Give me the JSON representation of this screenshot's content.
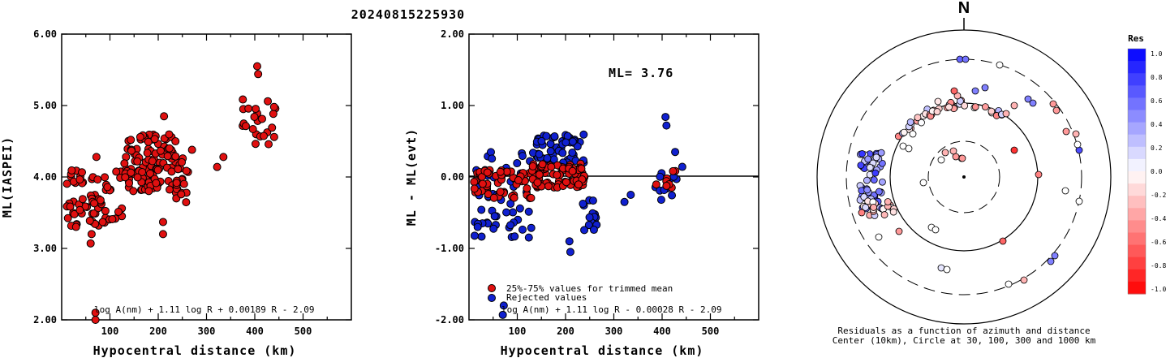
{
  "title": "20240815225930",
  "colors": {
    "red": "#e01010",
    "blue": "#1020d0",
    "black": "#000000"
  },
  "chart_data": [
    {
      "type": "scatter",
      "name": "left",
      "xlabel": "Hypocentral distance (km)",
      "ylabel": "ML(IASPEI)",
      "xlim": [
        0,
        600
      ],
      "ylim": [
        2.0,
        6.0
      ],
      "xticks": [
        "100",
        "200",
        "300",
        "400",
        "500"
      ],
      "yticks": [
        "2.00",
        "3.00",
        "4.00",
        "5.00",
        "6.00"
      ],
      "formula": "log A(nm) + 1.11 log R + 0.00189 R - 2.09",
      "clusters": [
        {
          "x": [
            10,
            130
          ],
          "y": [
            3.3,
            4.1
          ],
          "n": 70
        },
        {
          "x": [
            130,
            240
          ],
          "y": [
            3.8,
            4.6
          ],
          "n": 110
        },
        {
          "x": [
            235,
            265
          ],
          "y": [
            3.6,
            4.3
          ],
          "n": 22
        },
        {
          "x": [
            375,
            445
          ],
          "y": [
            4.4,
            5.1
          ],
          "n": 22
        }
      ],
      "points": [
        {
          "x": 60,
          "y": 3.07
        },
        {
          "x": 62,
          "y": 3.2
        },
        {
          "x": 70,
          "y": 2.1
        },
        {
          "x": 70,
          "y": 2.0
        },
        {
          "x": 72,
          "y": 4.28
        },
        {
          "x": 210,
          "y": 3.37
        },
        {
          "x": 210,
          "y": 3.2
        },
        {
          "x": 212,
          "y": 4.85
        },
        {
          "x": 322,
          "y": 4.14
        },
        {
          "x": 335,
          "y": 4.28
        },
        {
          "x": 405,
          "y": 5.55
        },
        {
          "x": 407,
          "y": 5.44
        },
        {
          "x": 427,
          "y": 5.06
        },
        {
          "x": 440,
          "y": 4.98
        },
        {
          "x": 270,
          "y": 4.38
        }
      ]
    },
    {
      "type": "scatter",
      "name": "middle",
      "xlabel": "Hypocentral distance (km)",
      "ylabel": "ML - ML(evt)",
      "xlim": [
        0,
        600
      ],
      "ylim": [
        -2.0,
        2.0
      ],
      "xticks": [
        "100",
        "200",
        "300",
        "400",
        "500"
      ],
      "yticks": [
        "-2.00",
        "-1.00",
        "0.00",
        "1.00",
        "2.00"
      ],
      "annotation": "ML= 3.76",
      "legend": [
        "25%-75% values for trimmed mean",
        "Rejected values"
      ],
      "formula": "log A(nm) + 1.11 log R - 0.00028 R - 2.09",
      "clusters_red": [
        {
          "x": [
            10,
            130
          ],
          "y": [
            -0.3,
            0.1
          ],
          "n": 55
        },
        {
          "x": [
            130,
            240
          ],
          "y": [
            -0.15,
            0.2
          ],
          "n": 85
        },
        {
          "x": [
            380,
            440
          ],
          "y": [
            -0.15,
            0.1
          ],
          "n": 8
        }
      ],
      "clusters_blue": [
        {
          "x": [
            10,
            130
          ],
          "y": [
            -0.85,
            0.35
          ],
          "n": 60
        },
        {
          "x": [
            130,
            240
          ],
          "y": [
            0.2,
            0.6
          ],
          "n": 55
        },
        {
          "x": [
            235,
            265
          ],
          "y": [
            -0.75,
            -0.3
          ],
          "n": 18
        },
        {
          "x": [
            380,
            445
          ],
          "y": [
            -0.35,
            0.3
          ],
          "n": 12
        }
      ],
      "points_blue": [
        {
          "x": 208,
          "y": -0.9
        },
        {
          "x": 210,
          "y": -1.05
        },
        {
          "x": 70,
          "y": -1.93
        },
        {
          "x": 72,
          "y": -1.8
        },
        {
          "x": 407,
          "y": 0.84
        },
        {
          "x": 409,
          "y": 0.72
        },
        {
          "x": 322,
          "y": -0.35
        },
        {
          "x": 335,
          "y": -0.25
        },
        {
          "x": 427,
          "y": 0.35
        }
      ]
    },
    {
      "type": "scatter",
      "name": "polar",
      "north_label": "N",
      "caption": [
        "Residuals as a function of azimuth and distance",
        "Center (10km), Circle at 30, 100, 300 and 1000 km"
      ],
      "colorbar_title": "Res",
      "colorbar_ticks": [
        "1.0",
        "0.8",
        "0.6",
        "0.4",
        "0.2",
        "0.0",
        "-0.2",
        "-0.4",
        "-0.6",
        "-0.8",
        "-1.0"
      ],
      "colorbar_range": [
        -1.0,
        1.0
      ]
    }
  ]
}
